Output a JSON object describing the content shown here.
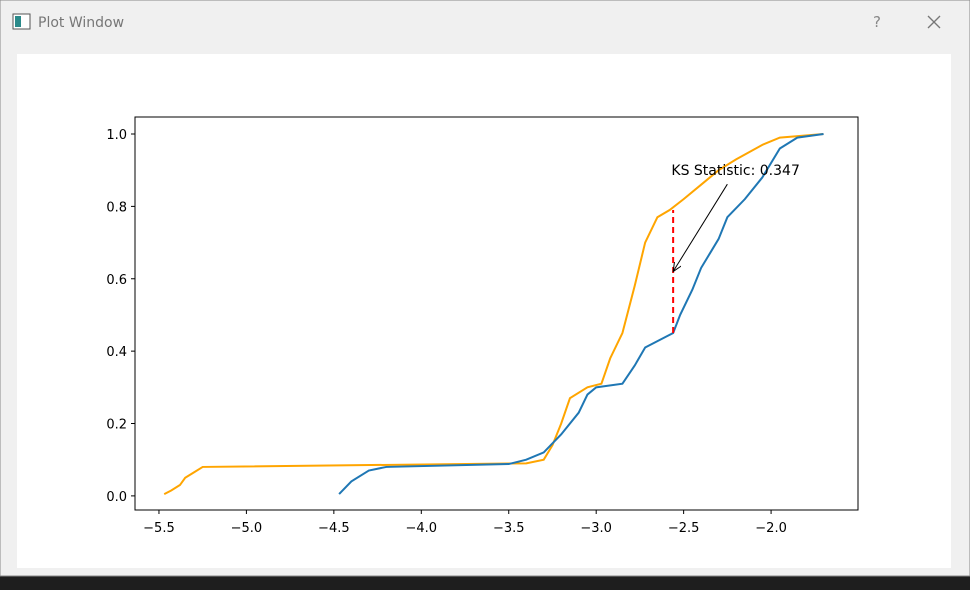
{
  "window": {
    "title": "Plot Window",
    "help": "?"
  },
  "chart_data": {
    "type": "line",
    "series": [
      {
        "color": "#ffa500",
        "x": [
          -5.47,
          -5.43,
          -5.38,
          -5.35,
          -5.3,
          -5.25,
          -3.4,
          -3.3,
          -3.25,
          -3.2,
          -3.15,
          -3.05,
          -2.97,
          -2.92,
          -2.85,
          -2.78,
          -2.72,
          -2.65,
          -2.58,
          -2.5,
          -2.4,
          -2.3,
          -2.2,
          -2.05,
          -1.95,
          -1.7
        ],
        "values": [
          0.005,
          0.015,
          0.03,
          0.05,
          0.065,
          0.08,
          0.09,
          0.1,
          0.14,
          0.2,
          0.27,
          0.3,
          0.31,
          0.38,
          0.45,
          0.58,
          0.7,
          0.77,
          0.79,
          0.82,
          0.86,
          0.9,
          0.93,
          0.97,
          0.99,
          1.0
        ]
      },
      {
        "color": "#1f77b4",
        "x": [
          -4.47,
          -4.4,
          -4.3,
          -4.2,
          -3.5,
          -3.4,
          -3.3,
          -3.2,
          -3.1,
          -3.05,
          -3.0,
          -2.85,
          -2.78,
          -2.72,
          -2.6,
          -2.56,
          -2.52,
          -2.45,
          -2.4,
          -2.35,
          -2.3,
          -2.25,
          -2.15,
          -2.05,
          -1.95,
          -1.85,
          -1.7
        ],
        "values": [
          0.005,
          0.04,
          0.07,
          0.08,
          0.088,
          0.1,
          0.12,
          0.17,
          0.23,
          0.28,
          0.3,
          0.31,
          0.36,
          0.41,
          0.44,
          0.45,
          0.5,
          0.57,
          0.63,
          0.67,
          0.71,
          0.77,
          0.82,
          0.88,
          0.96,
          0.99,
          1.0
        ]
      }
    ],
    "ks_line": {
      "x": -2.56,
      "y": [
        0.45,
        0.79
      ],
      "color": "#ff0000"
    },
    "annotation": {
      "text": "KS Statistic: 0.347",
      "xy": [
        -2.56,
        0.62
      ],
      "xytext": [
        -2.57,
        0.9
      ]
    },
    "xlim": [
      -5.637,
      -1.503
    ],
    "ylim": [
      -0.039,
      1.047
    ],
    "xticks": [
      {
        "value": -5.5,
        "label": "−5.5"
      },
      {
        "value": -5.0,
        "label": "−5.0"
      },
      {
        "value": -4.5,
        "label": "−4.5"
      },
      {
        "value": -4.0,
        "label": "−4.0"
      },
      {
        "value": -3.5,
        "label": "−3.5"
      },
      {
        "value": -3.0,
        "label": "−3.0"
      },
      {
        "value": -2.5,
        "label": "−2.5"
      },
      {
        "value": -2.0,
        "label": "−2.0"
      }
    ],
    "yticks": [
      {
        "value": 0,
        "label": "0.0"
      },
      0.2,
      0.4,
      0.6,
      0.8,
      {
        "value": 1,
        "label": "1.0"
      }
    ]
  }
}
